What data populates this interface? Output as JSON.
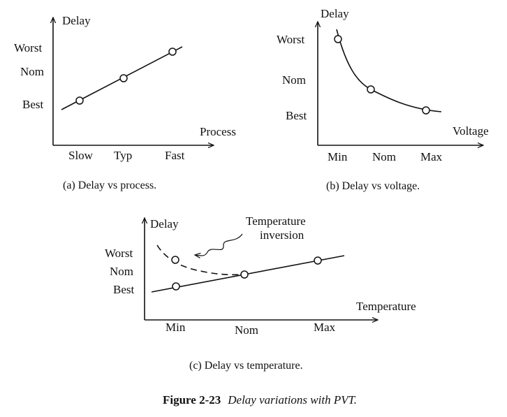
{
  "colors": {
    "ink": "#111111",
    "background": "#ffffff"
  },
  "panels": {
    "a": {
      "y_axis_label": "Delay",
      "x_axis_label": "Process",
      "y_ticks": [
        "Worst",
        "Nom",
        "Best"
      ],
      "x_ticks": [
        "Slow",
        "Typ",
        "Fast"
      ],
      "caption": "(a) Delay vs process."
    },
    "b": {
      "y_axis_label": "Delay",
      "x_axis_label": "Voltage",
      "y_ticks": [
        "Worst",
        "Nom",
        "Best"
      ],
      "x_ticks": [
        "Min",
        "Nom",
        "Max"
      ],
      "caption": "(b) Delay vs voltage."
    },
    "c": {
      "y_axis_label": "Delay",
      "x_axis_label": "Temperature",
      "y_ticks": [
        "Worst",
        "Nom",
        "Best"
      ],
      "x_ticks": [
        "Min",
        "Nom",
        "Max"
      ],
      "annotation_lines": [
        "Temperature",
        "inversion"
      ],
      "caption": "(c) Delay vs temperature."
    }
  },
  "figure": {
    "number": "Figure 2-23",
    "title": "Delay variations with PVT."
  }
}
